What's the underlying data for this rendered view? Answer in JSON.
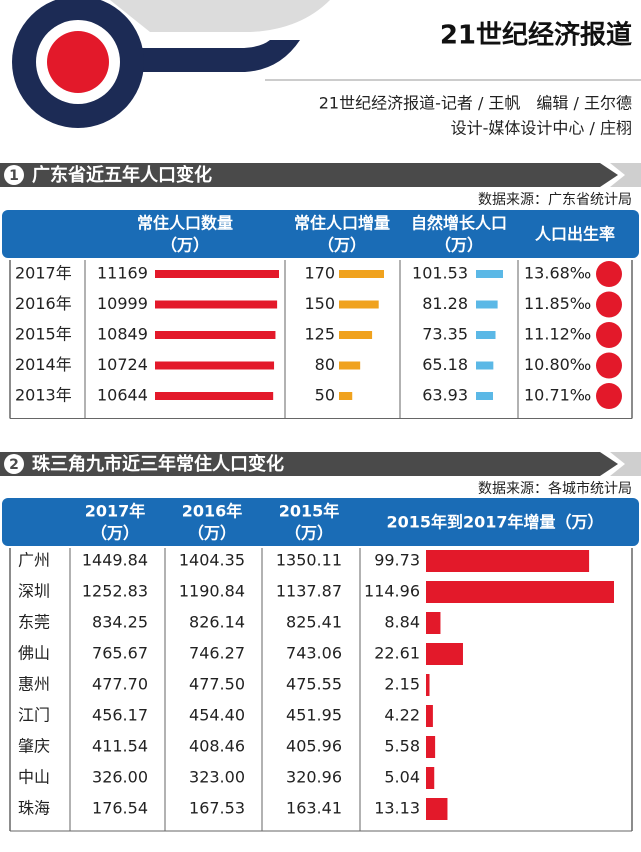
{
  "header": {
    "title": "21世纪经济报道",
    "credits_1": "21世纪经济报道-记者 / 王帆　编辑 / 王尔德",
    "credits_2": "设计-媒体设计中心 / 庄栩"
  },
  "section1": {
    "number": "1",
    "title": "广东省近五年人口变化",
    "source": "数据来源：广东省统计局",
    "headers": [
      {
        "name": "常住人口数量",
        "unit": "（万）"
      },
      {
        "name": "常住人口增量",
        "unit": "（万）"
      },
      {
        "name": "自然增长人口",
        "unit": "（万）"
      },
      {
        "name": "人口出生率"
      }
    ],
    "rows": [
      {
        "year": "2017年",
        "population": 11169,
        "increase": 170,
        "natural_increase": 101.53,
        "birth_rate": "13.68‰"
      },
      {
        "year": "2016年",
        "population": 10999,
        "increase": 150,
        "natural_increase": 81.28,
        "birth_rate": "11.85‰"
      },
      {
        "year": "2015年",
        "population": 10849,
        "increase": 125,
        "natural_increase": 73.35,
        "birth_rate": "11.12‰"
      },
      {
        "year": "2014年",
        "population": 10724,
        "increase": 80,
        "natural_increase": 65.18,
        "birth_rate": "10.80‰"
      },
      {
        "year": "2013年",
        "population": 10644,
        "increase": 50,
        "natural_increase": 63.93,
        "birth_rate": "10.71‰"
      }
    ]
  },
  "section2": {
    "number": "2",
    "title": "珠三角九市近三年常住人口变化",
    "source": "数据来源：各城市统计局",
    "headers": [
      {
        "name": "2017年",
        "unit": "（万）"
      },
      {
        "name": "2016年",
        "unit": "（万）"
      },
      {
        "name": "2015年",
        "unit": "（万）"
      },
      {
        "name": "2015年到2017年增量（万）"
      }
    ],
    "rows": [
      {
        "city": "广州",
        "v2017": "1449.84",
        "v2016": "1404.35",
        "v2015": "1350.11",
        "increase": 99.73
      },
      {
        "city": "深圳",
        "v2017": "1252.83",
        "v2016": "1190.84",
        "v2015": "1137.87",
        "increase": 114.96
      },
      {
        "city": "东莞",
        "v2017": "834.25",
        "v2016": "826.14",
        "v2015": "825.41",
        "increase": 8.84
      },
      {
        "city": "佛山",
        "v2017": "765.67",
        "v2016": "746.27",
        "v2015": "743.06",
        "increase": 22.61
      },
      {
        "city": "惠州",
        "v2017": "477.70",
        "v2016": "477.50",
        "v2015": "475.55",
        "increase": 2.15
      },
      {
        "city": "江门",
        "v2017": "456.17",
        "v2016": "454.40",
        "v2015": "451.95",
        "increase": 4.22
      },
      {
        "city": "肇庆",
        "v2017": "411.54",
        "v2016": "408.46",
        "v2015": "405.96",
        "increase": 5.58
      },
      {
        "city": "中山",
        "v2017": "326.00",
        "v2016": "323.00",
        "v2015": "320.96",
        "increase": 5.04
      },
      {
        "city": "珠海",
        "v2017": "176.54",
        "v2016": "167.53",
        "v2015": "163.41",
        "increase": 13.13
      }
    ]
  }
}
